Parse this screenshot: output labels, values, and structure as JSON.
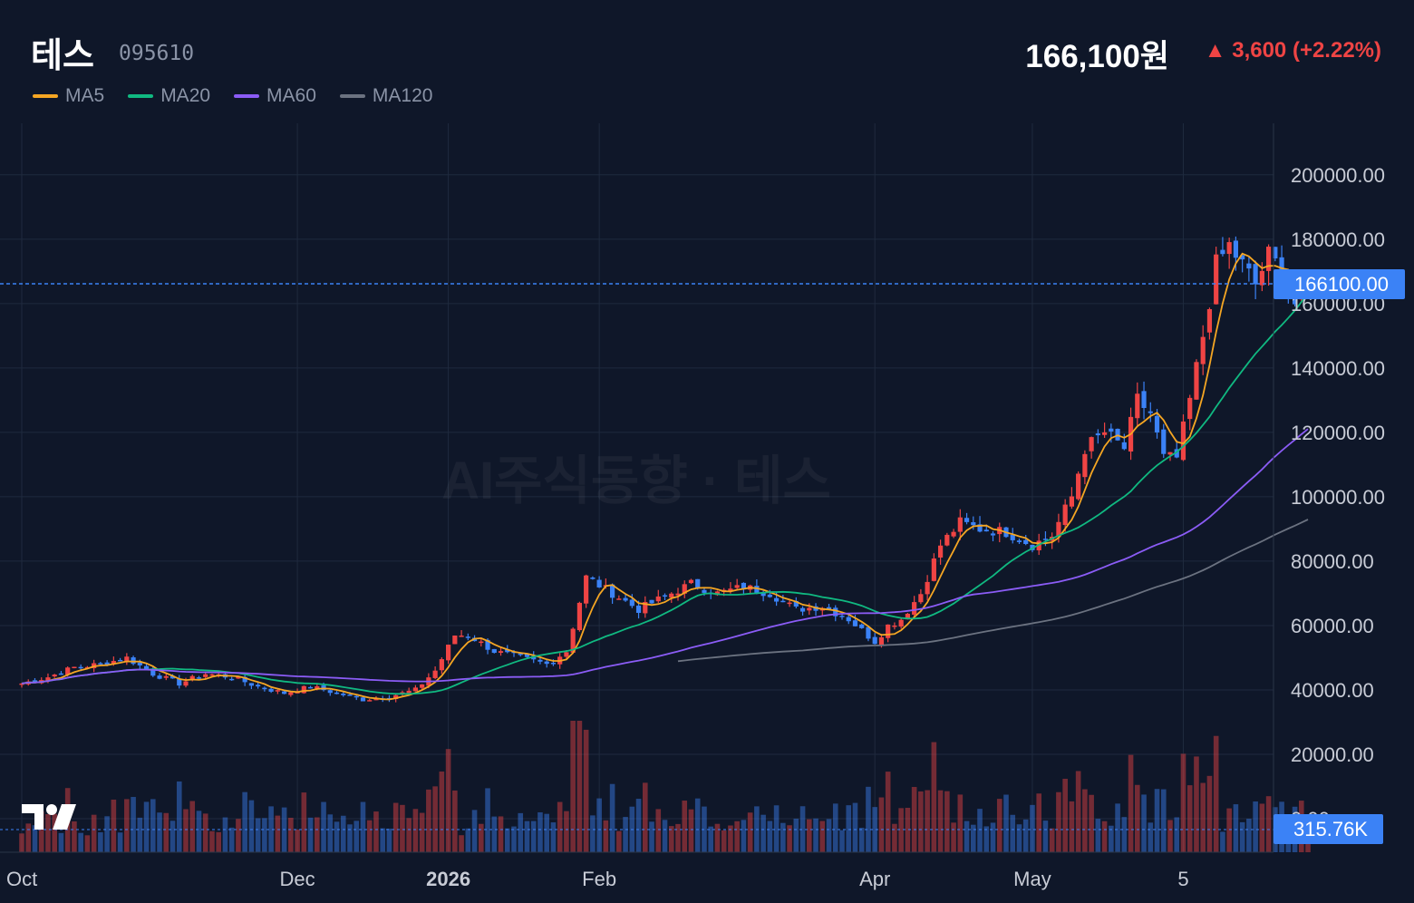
{
  "header": {
    "name": "테스",
    "code": "095610",
    "price": "166,100원",
    "change": "▲ 3,600 (+2.22%)"
  },
  "legend": [
    {
      "label": "MA5",
      "color": "#f5a623"
    },
    {
      "label": "MA20",
      "color": "#10b981"
    },
    {
      "label": "MA60",
      "color": "#8b5cf6"
    },
    {
      "label": "MA120",
      "color": "#6b7280"
    }
  ],
  "watermark": "AI주식동향 · 테스",
  "price_tag": "166100.00",
  "volume_tag": "315.76K",
  "colors": {
    "up": "#ef4444",
    "down": "#3b82f6",
    "bg": "#0f1729",
    "grid": "#1f2a3e"
  },
  "chart_data": {
    "type": "candlestick",
    "y_ticks": [
      "200000.00",
      "180000.00",
      "160000.00",
      "140000.00",
      "120000.00",
      "100000.00",
      "80000.00",
      "60000.00",
      "40000.00",
      "20000.00",
      "0.00"
    ],
    "ylim": [
      0,
      215000
    ],
    "x_ticks": [
      {
        "label": "Oct",
        "day": 0,
        "bold": false
      },
      {
        "label": "Dec",
        "day": 42,
        "bold": false
      },
      {
        "label": "2026",
        "day": 65,
        "bold": true
      },
      {
        "label": "Feb",
        "day": 88,
        "bold": false
      },
      {
        "label": "Apr",
        "day": 130,
        "bold": false
      },
      {
        "label": "May",
        "day": 154,
        "bold": false
      },
      {
        "label": "5",
        "day": 177,
        "bold": false
      }
    ],
    "last_price": 166100,
    "last_volume": "315.76K",
    "anchors": [
      [
        0,
        42000
      ],
      [
        4,
        44000
      ],
      [
        8,
        47000
      ],
      [
        12,
        48000
      ],
      [
        16,
        50000
      ],
      [
        20,
        45000
      ],
      [
        24,
        42000
      ],
      [
        28,
        45000
      ],
      [
        32,
        44000
      ],
      [
        36,
        41000
      ],
      [
        40,
        39000
      ],
      [
        44,
        41000
      ],
      [
        48,
        39000
      ],
      [
        52,
        37000
      ],
      [
        56,
        38000
      ],
      [
        60,
        40000
      ],
      [
        63,
        46000
      ],
      [
        66,
        57000
      ],
      [
        68,
        57000
      ],
      [
        72,
        52000
      ],
      [
        76,
        50000
      ],
      [
        80,
        48000
      ],
      [
        83,
        52000
      ],
      [
        86,
        75000
      ],
      [
        90,
        70000
      ],
      [
        94,
        65000
      ],
      [
        98,
        69000
      ],
      [
        102,
        73000
      ],
      [
        106,
        70000
      ],
      [
        110,
        72000
      ],
      [
        114,
        70000
      ],
      [
        118,
        65000
      ],
      [
        122,
        66000
      ],
      [
        126,
        62000
      ],
      [
        130,
        55000
      ],
      [
        132,
        60000
      ],
      [
        134,
        62000
      ],
      [
        137,
        70000
      ],
      [
        140,
        85000
      ],
      [
        143,
        92000
      ],
      [
        146,
        90000
      ],
      [
        150,
        89000
      ],
      [
        154,
        85000
      ],
      [
        157,
        88000
      ],
      [
        160,
        100000
      ],
      [
        162,
        115000
      ],
      [
        165,
        120000
      ],
      [
        168,
        115000
      ],
      [
        170,
        130000
      ],
      [
        172,
        126000
      ],
      [
        174,
        112000
      ],
      [
        176,
        112000
      ],
      [
        178,
        130000
      ],
      [
        180,
        150000
      ],
      [
        182,
        172000
      ],
      [
        184,
        178000
      ],
      [
        186,
        172000
      ],
      [
        188,
        166000
      ],
      [
        190,
        175000
      ],
      [
        192,
        170000
      ],
      [
        194,
        160000
      ],
      [
        196,
        166100
      ]
    ],
    "ma": [
      {
        "name": "MA5",
        "window": 5,
        "color": "#f5a623"
      },
      {
        "name": "MA20",
        "window": 20,
        "color": "#10b981"
      },
      {
        "name": "MA60",
        "window": 60,
        "color": "#8b5cf6"
      },
      {
        "name": "MA120",
        "window": 120,
        "color": "#6b7280"
      }
    ]
  }
}
